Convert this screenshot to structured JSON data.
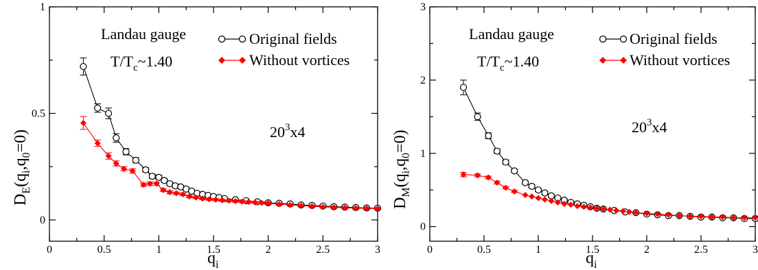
{
  "charts": [
    {
      "id": "left",
      "ylabel": {
        "main": "D",
        "sub": "E",
        "rest": "(q",
        "sub2": "i",
        "rest2": ",q",
        "sub3": "0",
        "rest3": "=0)"
      },
      "xlabel": {
        "main": "q",
        "sub": "i"
      },
      "annotation_gauge": "Landau gauge",
      "annotation_temp": {
        "main": "T/T",
        "sub": "c",
        "rest": "~1.40"
      },
      "annotation_lattice": {
        "main": "20",
        "sup": "3",
        "rest": "x4"
      },
      "legend": [
        "Original fields",
        "Without vortices"
      ]
    },
    {
      "id": "right",
      "ylabel": {
        "main": "D",
        "sub": "M",
        "rest": "(q",
        "sub2": "i",
        "rest2": ",q",
        "sub3": "0",
        "rest3": "=0)"
      },
      "xlabel": {
        "main": "q",
        "sub": "i"
      },
      "annotation_gauge": "Landau gauge",
      "annotation_temp": {
        "main": "T/T",
        "sub": "c",
        "rest": "~1.40"
      },
      "annotation_lattice": {
        "main": "20",
        "sup": "3",
        "rest": "x4"
      },
      "legend": [
        "Original fields",
        "Without vortices"
      ]
    }
  ],
  "colors": {
    "original": "#000000",
    "without": "#ff0000"
  },
  "chart_data": [
    {
      "type": "scatter",
      "xlim": [
        0,
        3
      ],
      "ylim": [
        -0.1,
        1.0
      ],
      "xticks": [
        0,
        0.5,
        1,
        1.5,
        2,
        2.5,
        3
      ],
      "xtick_labels": [
        "0",
        "0.5",
        "1",
        "1.5",
        "2",
        "2.5",
        "3"
      ],
      "yticks": [
        0,
        0.5,
        1
      ],
      "ytick_labels": [
        "0",
        "0.5",
        "1"
      ],
      "legend_position": "top-right",
      "series": [
        {
          "name": "Original fields",
          "marker": "open-circle",
          "x": [
            0.31,
            0.44,
            0.54,
            0.61,
            0.7,
            0.79,
            0.88,
            0.94,
            1.0,
            1.05,
            1.1,
            1.15,
            1.2,
            1.25,
            1.3,
            1.35,
            1.4,
            1.45,
            1.5,
            1.55,
            1.6,
            1.7,
            1.8,
            1.9,
            2.0,
            2.1,
            2.2,
            2.3,
            2.4,
            2.5,
            2.6,
            2.7,
            2.8,
            2.9,
            3.0
          ],
          "y": [
            0.72,
            0.525,
            0.5,
            0.385,
            0.32,
            0.28,
            0.235,
            0.205,
            0.2,
            0.185,
            0.17,
            0.16,
            0.155,
            0.145,
            0.135,
            0.125,
            0.12,
            0.115,
            0.11,
            0.105,
            0.1,
            0.095,
            0.09,
            0.085,
            0.08,
            0.078,
            0.075,
            0.07,
            0.068,
            0.065,
            0.062,
            0.06,
            0.058,
            0.056,
            0.055
          ],
          "err": [
            0.04,
            0.02,
            0.025,
            0.02,
            0.015,
            0.012,
            0.01,
            0.01,
            0.01,
            0.008,
            0.008,
            0.008,
            0.007,
            0.007,
            0.007,
            0.006,
            0.006,
            0.006,
            0.006,
            0.005,
            0.005,
            0.005,
            0.005,
            0.005,
            0.005,
            0.005,
            0.005,
            0.005,
            0.005,
            0.005,
            0.005,
            0.005,
            0.005,
            0.005,
            0.005
          ]
        },
        {
          "name": "Without vortices",
          "marker": "filled-diamond",
          "x": [
            0.31,
            0.44,
            0.54,
            0.61,
            0.68,
            0.76,
            0.86,
            0.92,
            0.98,
            1.04,
            1.1,
            1.16,
            1.22,
            1.28,
            1.34,
            1.4,
            1.46,
            1.52,
            1.58,
            1.64,
            1.7,
            1.76,
            1.82,
            1.88,
            1.94,
            2.0,
            2.1,
            2.2,
            2.3,
            2.4,
            2.5,
            2.6,
            2.7,
            2.8,
            2.9,
            3.0
          ],
          "y": [
            0.455,
            0.36,
            0.3,
            0.265,
            0.24,
            0.23,
            0.165,
            0.17,
            0.17,
            0.14,
            0.13,
            0.125,
            0.12,
            0.11,
            0.105,
            0.1,
            0.097,
            0.095,
            0.092,
            0.09,
            0.088,
            0.086,
            0.084,
            0.082,
            0.08,
            0.078,
            0.074,
            0.07,
            0.067,
            0.064,
            0.061,
            0.059,
            0.057,
            0.055,
            0.054,
            0.053
          ],
          "err": [
            0.03,
            0.015,
            0.015,
            0.012,
            0.01,
            0.01,
            0.008,
            0.008,
            0.008,
            0.007,
            0.007,
            0.006,
            0.006,
            0.006,
            0.005,
            0.005,
            0.005,
            0.005,
            0.005,
            0.005,
            0.005,
            0.005,
            0.005,
            0.005,
            0.005,
            0.005,
            0.005,
            0.005,
            0.005,
            0.005,
            0.005,
            0.005,
            0.005,
            0.005,
            0.005,
            0.005
          ]
        }
      ]
    },
    {
      "type": "scatter",
      "xlim": [
        0,
        3
      ],
      "ylim": [
        -0.2,
        3.0
      ],
      "xticks": [
        0,
        0.5,
        1,
        1.5,
        2,
        2.5,
        3
      ],
      "xtick_labels": [
        "0",
        "0.5",
        "1",
        "1.5",
        "2",
        "2.5",
        "3"
      ],
      "yticks": [
        0,
        1,
        2,
        3
      ],
      "ytick_labels": [
        "0",
        "1",
        "2",
        "3"
      ],
      "legend_position": "top-right",
      "series": [
        {
          "name": "Original fields",
          "marker": "open-circle",
          "x": [
            0.31,
            0.44,
            0.54,
            0.62,
            0.7,
            0.78,
            0.88,
            0.94,
            1.0,
            1.06,
            1.12,
            1.18,
            1.24,
            1.3,
            1.36,
            1.42,
            1.48,
            1.54,
            1.6,
            1.7,
            1.8,
            1.9,
            2.0,
            2.1,
            2.2,
            2.3,
            2.4,
            2.5,
            2.6,
            2.7,
            2.8,
            2.9,
            3.0
          ],
          "y": [
            1.9,
            1.5,
            1.24,
            1.03,
            0.88,
            0.76,
            0.6,
            0.55,
            0.5,
            0.46,
            0.42,
            0.39,
            0.36,
            0.33,
            0.31,
            0.29,
            0.27,
            0.25,
            0.24,
            0.22,
            0.2,
            0.19,
            0.17,
            0.16,
            0.15,
            0.15,
            0.14,
            0.13,
            0.13,
            0.12,
            0.12,
            0.11,
            0.11
          ],
          "err": [
            0.1,
            0.05,
            0.04,
            0.03,
            0.03,
            0.02,
            0.02,
            0.02,
            0.02,
            0.02,
            0.02,
            0.015,
            0.015,
            0.015,
            0.015,
            0.01,
            0.01,
            0.01,
            0.01,
            0.01,
            0.01,
            0.01,
            0.01,
            0.01,
            0.01,
            0.01,
            0.01,
            0.01,
            0.01,
            0.01,
            0.01,
            0.01,
            0.01
          ]
        },
        {
          "name": "Without vortices",
          "marker": "filled-diamond",
          "x": [
            0.31,
            0.44,
            0.54,
            0.62,
            0.7,
            0.78,
            0.88,
            0.94,
            1.0,
            1.06,
            1.12,
            1.18,
            1.24,
            1.3,
            1.36,
            1.42,
            1.48,
            1.54,
            1.6,
            1.66,
            1.72,
            1.78,
            1.84,
            1.9,
            2.0,
            2.1,
            2.2,
            2.3,
            2.4,
            2.5,
            2.6,
            2.7,
            2.8,
            2.9,
            3.0
          ],
          "y": [
            0.71,
            0.7,
            0.67,
            0.6,
            0.53,
            0.48,
            0.43,
            0.41,
            0.39,
            0.37,
            0.35,
            0.33,
            0.31,
            0.3,
            0.28,
            0.27,
            0.26,
            0.25,
            0.24,
            0.23,
            0.22,
            0.21,
            0.2,
            0.19,
            0.18,
            0.17,
            0.16,
            0.15,
            0.14,
            0.14,
            0.13,
            0.13,
            0.12,
            0.12,
            0.12
          ],
          "err": [
            0.03,
            0.02,
            0.02,
            0.02,
            0.015,
            0.015,
            0.01,
            0.01,
            0.01,
            0.01,
            0.01,
            0.01,
            0.01,
            0.01,
            0.01,
            0.01,
            0.01,
            0.01,
            0.01,
            0.01,
            0.01,
            0.01,
            0.01,
            0.01,
            0.01,
            0.01,
            0.01,
            0.01,
            0.01,
            0.01,
            0.01,
            0.01,
            0.01,
            0.01,
            0.01
          ]
        }
      ]
    }
  ]
}
